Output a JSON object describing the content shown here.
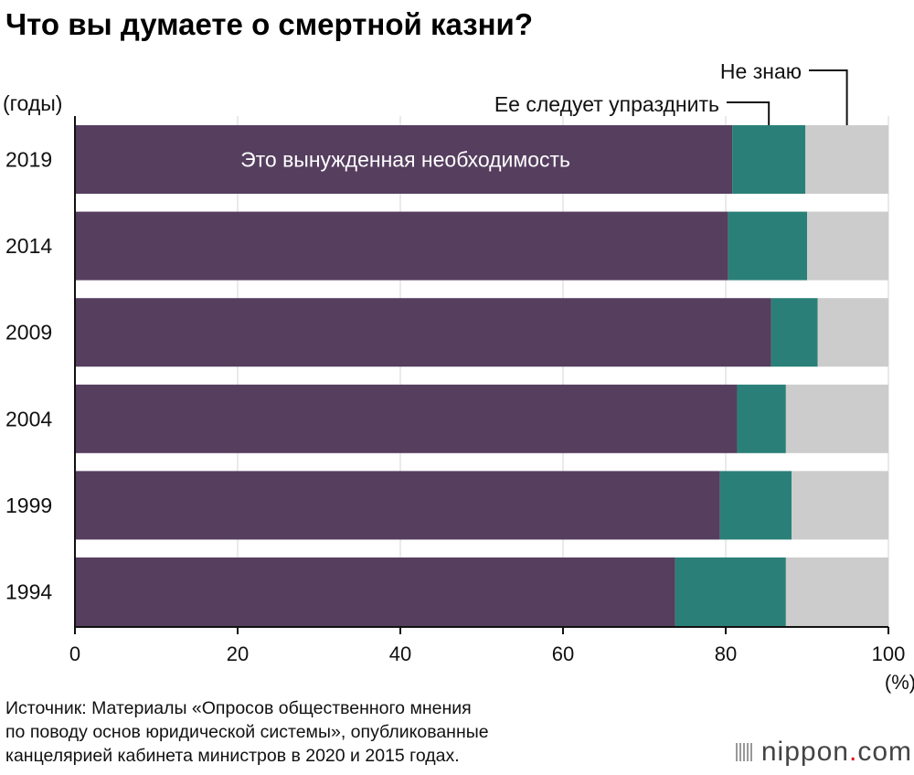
{
  "title": "Что вы думаете о смертной казни?",
  "chart_data": {
    "type": "bar",
    "orientation": "horizontal",
    "stacked": true,
    "title": "Что вы думаете о смертной казни?",
    "category_axis_label": "(годы)",
    "value_axis_unit": "(%)",
    "categories": [
      "2019",
      "2014",
      "2009",
      "2004",
      "1999",
      "1994"
    ],
    "series": [
      {
        "name": "Это вынужденная необходимость",
        "color": "#563e5f",
        "values": [
          80.8,
          80.3,
          85.6,
          81.4,
          79.3,
          73.8
        ]
      },
      {
        "name": "Ее следует упразднить",
        "color": "#2a8078",
        "values": [
          9.0,
          9.7,
          5.7,
          6.0,
          8.8,
          13.6
        ]
      },
      {
        "name": "Не знаю",
        "color": "#cccccc",
        "values": [
          10.2,
          10.0,
          8.7,
          12.6,
          11.9,
          12.6
        ]
      }
    ],
    "xlim": [
      0,
      100
    ],
    "xticks": [
      "0",
      "20",
      "40",
      "60",
      "80",
      "100"
    ],
    "grid": true
  },
  "source": {
    "lines": [
      "Источник: Материалы «Опросов общественного мнения",
      "по поводу основ юридической системы», опубликованные",
      "канцелярией кабинета министров в 2020 и 2015 годах."
    ]
  },
  "brand": {
    "name": "nippon",
    "dot": ".",
    "tld": "com"
  }
}
